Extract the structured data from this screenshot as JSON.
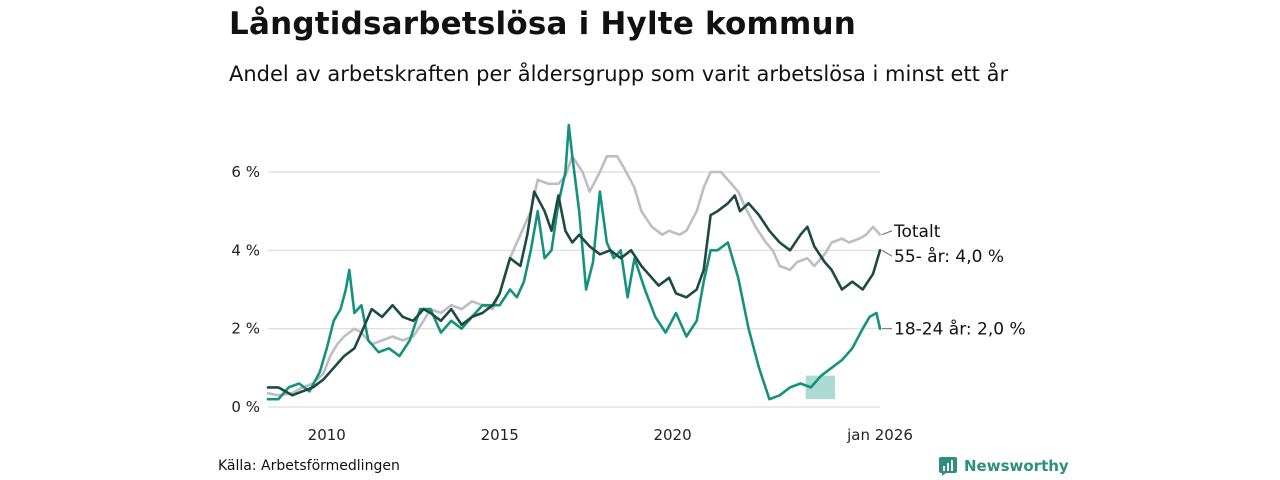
{
  "header": {
    "title": "Långtidsarbetslösa i Hylte kommun",
    "subtitle": "Andel av arbetskraften per åldersgrupp som varit arbetslösa i minst ett år"
  },
  "footer": {
    "source": "Källa: Arbetsförmedlingen",
    "brand": "Newsworthy"
  },
  "colors": {
    "totalt": "#bfbcc8",
    "age55": "#1f4a40",
    "age1824": "#17917f",
    "band": "#8fcfc4",
    "grid": "#dcdcdc",
    "brand": "#2f8f7e"
  },
  "chart_data": {
    "type": "line",
    "title": "Långtidsarbetslösa i Hylte kommun",
    "xlabel": "",
    "ylabel": "",
    "xlim": [
      2008.3,
      2026.0
    ],
    "ylim": [
      0,
      7.2
    ],
    "y_ticks": [
      0,
      2,
      4,
      6
    ],
    "y_tick_labels": [
      "0 %",
      "2 %",
      "4 %",
      "6 %"
    ],
    "x_ticks": [
      2010,
      2015,
      2020,
      2026
    ],
    "x_tick_labels": [
      "2010",
      "2015",
      "2020",
      "jan 2026"
    ],
    "grid": true,
    "series": [
      {
        "name": "Totalt",
        "label": "Totalt",
        "color": "#bfbcc8",
        "x": [
          2008.3,
          2008.6,
          2009.0,
          2009.3,
          2009.6,
          2009.9,
          2010.1,
          2010.3,
          2010.5,
          2010.8,
          2011.0,
          2011.3,
          2011.6,
          2011.9,
          2012.2,
          2012.5,
          2012.8,
          2013.0,
          2013.3,
          2013.6,
          2013.9,
          2014.2,
          2014.5,
          2014.8,
          2015.0,
          2015.3,
          2015.6,
          2015.9,
          2016.1,
          2016.4,
          2016.7,
          2016.9,
          2017.1,
          2017.4,
          2017.6,
          2017.9,
          2018.1,
          2018.4,
          2018.6,
          2018.9,
          2019.1,
          2019.4,
          2019.7,
          2019.9,
          2020.2,
          2020.4,
          2020.7,
          2020.9,
          2021.1,
          2021.4,
          2021.6,
          2021.9,
          2022.1,
          2022.4,
          2022.7,
          2022.9,
          2023.1,
          2023.4,
          2023.6,
          2023.9,
          2024.1,
          2024.4,
          2024.6,
          2024.9,
          2025.1,
          2025.4,
          2025.6,
          2025.8,
          2026.0
        ],
        "values": [
          0.35,
          0.3,
          0.35,
          0.5,
          0.6,
          0.85,
          1.3,
          1.6,
          1.8,
          2.0,
          1.9,
          1.6,
          1.7,
          1.8,
          1.7,
          1.8,
          2.2,
          2.5,
          2.4,
          2.6,
          2.5,
          2.7,
          2.6,
          2.5,
          2.9,
          3.8,
          4.4,
          5.0,
          5.8,
          5.7,
          5.7,
          5.9,
          6.4,
          6.0,
          5.5,
          6.0,
          6.4,
          6.4,
          6.1,
          5.6,
          5.0,
          4.6,
          4.4,
          4.5,
          4.4,
          4.5,
          5.0,
          5.6,
          6.0,
          6.0,
          5.8,
          5.5,
          5.1,
          4.6,
          4.2,
          4.0,
          3.6,
          3.5,
          3.7,
          3.8,
          3.6,
          3.9,
          4.2,
          4.3,
          4.2,
          4.3,
          4.4,
          4.6,
          4.4
        ]
      },
      {
        "name": "55- år",
        "label": "55- år: 4,0 %",
        "color": "#1f4a40",
        "x": [
          2008.3,
          2008.6,
          2009.0,
          2009.3,
          2009.6,
          2009.9,
          2010.1,
          2010.3,
          2010.5,
          2010.8,
          2011.0,
          2011.3,
          2011.6,
          2011.9,
          2012.2,
          2012.5,
          2012.8,
          2013.0,
          2013.3,
          2013.6,
          2013.9,
          2014.2,
          2014.5,
          2014.8,
          2015.0,
          2015.3,
          2015.6,
          2015.8,
          2016.0,
          2016.3,
          2016.5,
          2016.7,
          2016.9,
          2017.1,
          2017.3,
          2017.6,
          2017.9,
          2018.2,
          2018.5,
          2018.8,
          2019.1,
          2019.3,
          2019.6,
          2019.9,
          2020.1,
          2020.4,
          2020.7,
          2020.9,
          2021.1,
          2021.3,
          2021.6,
          2021.8,
          2021.95,
          2022.2,
          2022.5,
          2022.8,
          2023.1,
          2023.4,
          2023.7,
          2023.9,
          2024.1,
          2024.4,
          2024.6,
          2024.9,
          2025.2,
          2025.5,
          2025.8,
          2026.0
        ],
        "values": [
          0.5,
          0.5,
          0.3,
          0.4,
          0.5,
          0.7,
          0.9,
          1.1,
          1.3,
          1.5,
          1.9,
          2.5,
          2.3,
          2.6,
          2.3,
          2.2,
          2.5,
          2.4,
          2.2,
          2.5,
          2.1,
          2.3,
          2.4,
          2.6,
          2.9,
          3.8,
          3.6,
          4.4,
          5.5,
          5.0,
          4.5,
          5.4,
          4.5,
          4.2,
          4.4,
          4.1,
          3.9,
          4.0,
          3.8,
          4.0,
          3.6,
          3.4,
          3.1,
          3.3,
          2.9,
          2.8,
          3.0,
          3.5,
          4.9,
          5.0,
          5.2,
          5.4,
          5.0,
          5.2,
          4.9,
          4.5,
          4.2,
          4.0,
          4.4,
          4.6,
          4.1,
          3.7,
          3.5,
          3.0,
          3.2,
          3.0,
          3.4,
          4.0
        ]
      },
      {
        "name": "18-24 år",
        "label": "18-24 år: 2,0 %",
        "color": "#17917f",
        "x": [
          2008.3,
          2008.6,
          2008.9,
          2009.2,
          2009.5,
          2009.8,
          2010.0,
          2010.2,
          2010.4,
          2010.55,
          2010.65,
          2010.8,
          2011.0,
          2011.2,
          2011.5,
          2011.8,
          2012.1,
          2012.4,
          2012.7,
          2013.0,
          2013.3,
          2013.6,
          2013.9,
          2014.2,
          2014.5,
          2014.8,
          2015.0,
          2015.3,
          2015.5,
          2015.7,
          2015.9,
          2016.1,
          2016.3,
          2016.5,
          2016.7,
          2016.9,
          2017.0,
          2017.1,
          2017.3,
          2017.5,
          2017.7,
          2017.9,
          2018.1,
          2018.3,
          2018.5,
          2018.7,
          2018.9,
          2019.2,
          2019.5,
          2019.8,
          2020.1,
          2020.4,
          2020.7,
          2020.9,
          2021.1,
          2021.3,
          2021.6,
          2021.9,
          2022.2,
          2022.5,
          2022.8,
          2023.1,
          2023.4,
          2023.7,
          2024.0,
          2024.3,
          2024.6,
          2024.9,
          2025.2,
          2025.5,
          2025.7,
          2025.9,
          2026.0
        ],
        "values": [
          0.2,
          0.2,
          0.5,
          0.6,
          0.4,
          0.9,
          1.5,
          2.2,
          2.5,
          3.0,
          3.5,
          2.4,
          2.6,
          1.7,
          1.4,
          1.5,
          1.3,
          1.7,
          2.5,
          2.5,
          1.9,
          2.2,
          2.0,
          2.3,
          2.6,
          2.6,
          2.6,
          3.0,
          2.8,
          3.2,
          4.0,
          5.0,
          3.8,
          4.0,
          5.2,
          6.0,
          7.2,
          6.4,
          5.0,
          3.0,
          3.7,
          5.5,
          4.2,
          3.8,
          4.0,
          2.8,
          3.8,
          3.0,
          2.3,
          1.9,
          2.4,
          1.8,
          2.2,
          3.2,
          4.0,
          4.0,
          4.2,
          3.3,
          2.0,
          1.0,
          0.2,
          0.3,
          0.5,
          0.6,
          0.5,
          0.8,
          1.0,
          1.2,
          1.5,
          2.0,
          2.3,
          2.4,
          2.0
        ]
      }
    ],
    "uncertainty_band": {
      "series": "18-24 år",
      "x": [
        2023.85,
        2024.7
      ],
      "lower": [
        0.2,
        0.2
      ],
      "upper": [
        0.8,
        0.8
      ]
    }
  }
}
